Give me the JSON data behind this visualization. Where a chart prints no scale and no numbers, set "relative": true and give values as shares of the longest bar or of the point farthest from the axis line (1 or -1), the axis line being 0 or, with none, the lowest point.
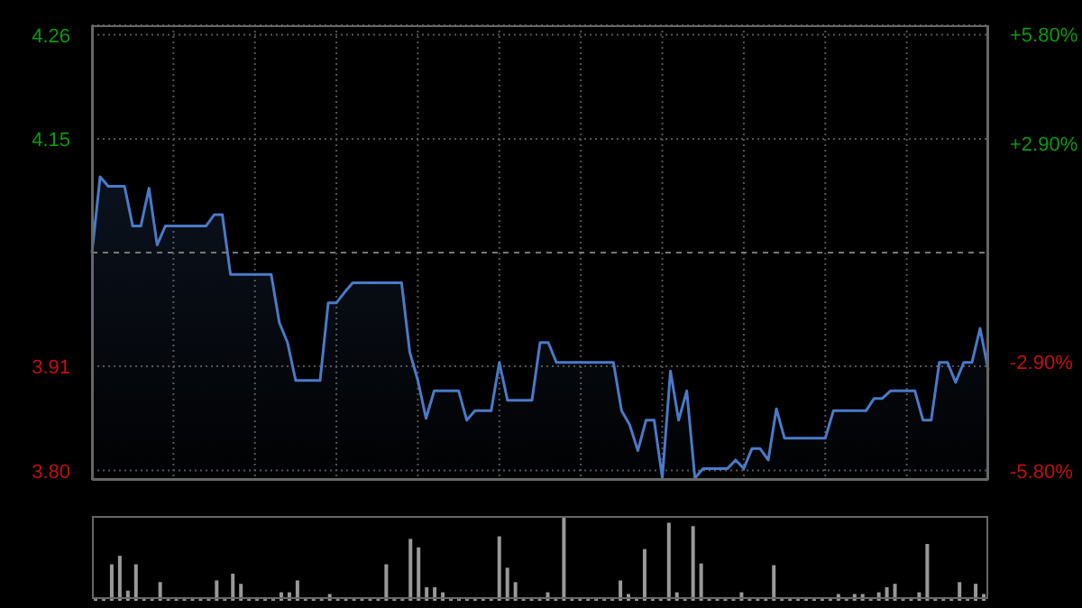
{
  "chart_data": [
    {
      "type": "area",
      "categories": [
        null,
        null,
        null,
        null,
        null,
        null,
        null,
        null,
        null,
        null,
        null,
        null,
        null,
        null,
        null,
        null,
        null,
        null,
        null,
        null,
        null,
        null,
        null,
        null,
        null,
        null,
        null,
        null,
        null,
        null,
        null,
        null,
        null,
        null,
        null,
        null,
        null,
        null,
        null,
        null,
        null,
        null,
        null,
        null,
        null,
        null,
        null,
        null,
        null,
        null,
        null,
        null,
        null,
        null,
        null,
        null,
        null,
        null,
        null,
        null,
        null,
        null,
        null,
        null,
        null,
        null,
        null,
        null,
        null,
        null,
        null,
        null,
        null,
        null,
        null,
        null,
        null,
        null,
        null,
        null,
        null,
        null,
        null,
        null,
        null,
        null,
        null,
        null,
        null,
        null,
        null,
        null,
        null,
        null,
        null,
        null,
        null,
        null,
        null,
        null,
        null,
        null,
        null,
        null,
        null,
        null,
        null,
        null,
        null,
        null,
        null
      ],
      "series": [
        {
          "color": "#4a7ac8",
          "values": [
            4.03,
            4.11,
            4.1,
            4.1,
            4.1,
            4.058,
            4.058,
            4.098,
            4.038,
            4.058,
            4.058,
            4.058,
            4.058,
            4.058,
            4.058,
            4.07,
            4.07,
            4.007,
            4.007,
            4.007,
            4.007,
            4.007,
            4.007,
            3.956,
            3.935,
            3.895,
            3.895,
            3.895,
            3.895,
            3.977,
            3.977,
            3.988,
            3.998,
            3.998,
            3.998,
            3.998,
            3.998,
            3.998,
            3.998,
            3.925,
            3.895,
            3.855,
            3.884,
            3.884,
            3.884,
            3.884,
            3.853,
            3.863,
            3.863,
            3.863,
            3.914,
            3.874,
            3.874,
            3.874,
            3.874,
            3.935,
            3.935,
            3.914,
            3.914,
            3.914,
            3.914,
            3.914,
            3.914,
            3.914,
            3.914,
            3.863,
            3.848,
            3.821,
            3.853,
            3.853,
            3.792,
            3.905,
            3.853,
            3.884,
            3.792,
            3.802,
            3.802,
            3.802,
            3.802,
            3.811,
            3.802,
            3.823,
            3.823,
            3.811,
            3.865,
            3.834,
            3.834,
            3.834,
            3.834,
            3.834,
            3.834,
            3.863,
            3.863,
            3.863,
            3.863,
            3.863,
            3.876,
            3.876,
            3.884,
            3.884,
            3.884,
            3.884,
            3.853,
            3.853,
            3.914,
            3.914,
            3.893,
            3.914,
            3.914,
            3.95,
            3.906
          ]
        }
      ],
      "ylim": [
        3.79,
        4.27
      ],
      "yticks": [
        {
          "value": 3.8,
          "label": "3.80"
        },
        3.91,
        4.15,
        4.26
      ],
      "y2lim": [
        -6.05,
        6.05
      ],
      "y2ticks": [
        {
          "value": -5.8,
          "label": "-5.80%"
        },
        {
          "value": -2.9,
          "label": "-2.90%"
        },
        {
          "value": 2.9,
          "label": "+2.90%"
        },
        {
          "value": 5.8,
          "label": "+5.80%"
        }
      ],
      "ref_lines": [
        {
          "axis": "y",
          "value": 4.03,
          "line_style": "dashed",
          "color": "#777777"
        }
      ],
      "grid": true,
      "tick_labels": "y",
      "legend": false
    },
    {
      "type": "bar",
      "relative": true,
      "tick_labels": false,
      "legend": false,
      "categories": [
        null,
        null,
        null,
        null,
        null,
        null,
        null,
        null,
        null,
        null,
        null,
        null,
        null,
        null,
        null,
        null,
        null,
        null,
        null,
        null,
        null,
        null,
        null,
        null,
        null,
        null,
        null,
        null,
        null,
        null,
        null,
        null,
        null,
        null,
        null,
        null,
        null,
        null,
        null,
        null,
        null,
        null,
        null,
        null,
        null,
        null,
        null,
        null,
        null,
        null,
        null,
        null,
        null,
        null,
        null,
        null,
        null,
        null,
        null,
        null,
        null,
        null,
        null,
        null,
        null,
        null,
        null,
        null,
        null,
        null,
        null,
        null,
        null,
        null,
        null,
        null,
        null,
        null,
        null,
        null,
        null,
        null,
        null,
        null,
        null,
        null,
        null,
        null,
        null,
        null,
        null,
        null,
        null,
        null,
        null,
        null,
        null,
        null,
        null,
        null,
        null,
        null,
        null,
        null,
        null,
        null,
        null,
        null,
        null,
        null,
        null
      ],
      "series": [
        {
          "color": "#999999",
          "values": [
            0.02,
            0.02,
            0.43,
            0.53,
            0.12,
            0.43,
            0.02,
            0.02,
            0.22,
            0.02,
            0.02,
            0.02,
            0.02,
            0.02,
            0.02,
            0.24,
            0.02,
            0.32,
            0.2,
            0.02,
            0.02,
            0.02,
            0.02,
            0.1,
            0.1,
            0.24,
            0.02,
            0.02,
            0.02,
            0.08,
            0.02,
            0.02,
            0.02,
            0.02,
            0.02,
            0.02,
            0.43,
            0.02,
            0.02,
            0.73,
            0.63,
            0.16,
            0.16,
            0.1,
            0.02,
            0.02,
            0.02,
            0.02,
            0.02,
            0.02,
            0.76,
            0.39,
            0.22,
            0.02,
            0.02,
            0.02,
            0.1,
            0.02,
            1.0,
            0.02,
            0.02,
            0.02,
            0.02,
            0.02,
            0.02,
            0.24,
            0.08,
            0.02,
            0.61,
            0.02,
            0.02,
            0.92,
            0.1,
            0.02,
            0.88,
            0.44,
            0.02,
            0.02,
            0.02,
            0.02,
            0.1,
            0.02,
            0.02,
            0.02,
            0.42,
            0.02,
            0.02,
            0.02,
            0.02,
            0.02,
            0.02,
            0.02,
            0.08,
            0.02,
            0.08,
            0.08,
            0.02,
            0.1,
            0.16,
            0.2,
            0.02,
            0.02,
            0.1,
            0.67,
            0.02,
            0.02,
            0.02,
            0.22,
            0.02,
            0.2,
            0.08
          ]
        }
      ]
    }
  ]
}
